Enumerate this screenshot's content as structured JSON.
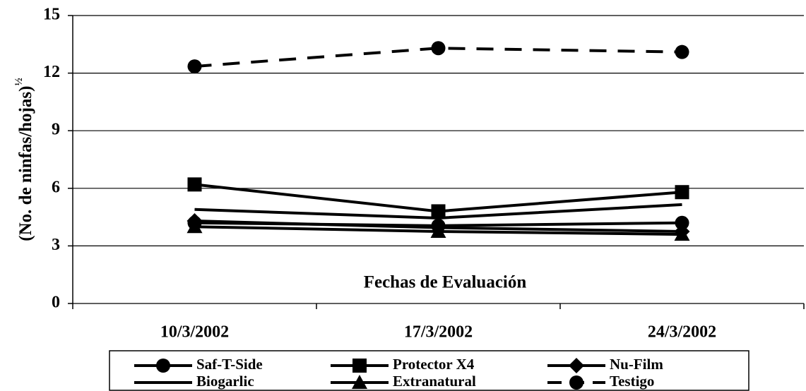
{
  "chart_data": {
    "type": "line",
    "xlabel": "Fechas de Evaluación",
    "ylabel": "(No. de ninfas/hojas)",
    "ylabel_superscript": "½",
    "categories": [
      "10/3/2002",
      "17/3/2002",
      "24/3/2002"
    ],
    "ylim": [
      0,
      15
    ],
    "yticks": [
      0,
      3,
      6,
      9,
      12,
      15
    ],
    "grid": true,
    "legend": "bottom",
    "series": [
      {
        "name": "Saf-T-Side",
        "color": "#000000",
        "marker": "circle",
        "dashed": false,
        "values": [
          4.2,
          4.05,
          4.2
        ]
      },
      {
        "name": "Protector X4",
        "color": "#000000",
        "marker": "square",
        "dashed": false,
        "values": [
          6.2,
          4.8,
          5.8
        ]
      },
      {
        "name": "Nu-Film",
        "color": "#000000",
        "marker": "diamond",
        "dashed": false,
        "values": [
          4.3,
          3.95,
          3.75
        ]
      },
      {
        "name": "Biogarlic",
        "color": "#000000",
        "marker": "none",
        "dashed": false,
        "values": [
          4.9,
          4.45,
          5.15
        ]
      },
      {
        "name": "Extranatural",
        "color": "#000000",
        "marker": "triangle",
        "dashed": false,
        "values": [
          4.0,
          3.75,
          3.6
        ]
      },
      {
        "name": "Testigo",
        "color": "#000000",
        "marker": "circle",
        "dashed": true,
        "values": [
          12.35,
          13.3,
          13.1
        ]
      }
    ]
  }
}
